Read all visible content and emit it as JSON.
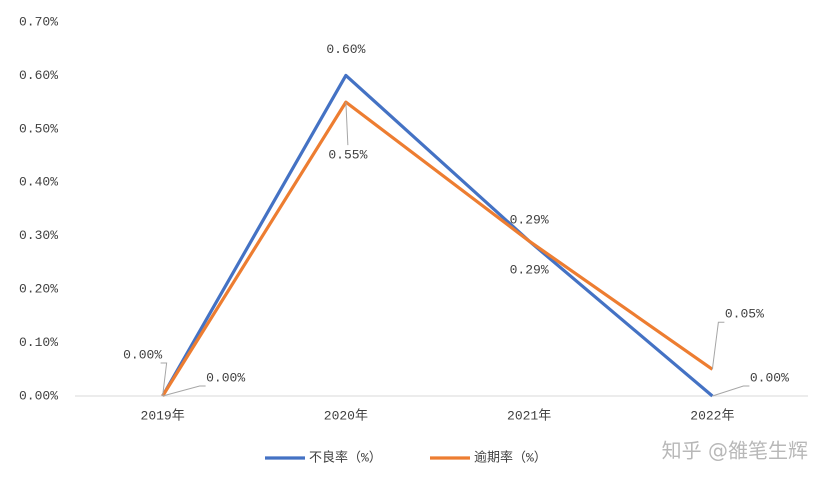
{
  "chart_data": {
    "type": "line",
    "categories": [
      "2019年",
      "2020年",
      "2021年",
      "2022年"
    ],
    "series": [
      {
        "name": "不良率（%）",
        "color": "#4472c4",
        "values": [
          0,
          0.6,
          0.29,
          0
        ],
        "value_labels": [
          "0.00%",
          "0.60%",
          "0.29%",
          "0.00%"
        ]
      },
      {
        "name": "逾期率（%）",
        "color": "#ed7d31",
        "values": [
          0,
          0.55,
          0.29,
          0.05
        ],
        "value_labels": [
          "0.00%",
          "0.55%",
          "0.29%",
          "0.05%"
        ]
      }
    ],
    "ylim": [
      0,
      0.7
    ],
    "yticks": [
      {
        "value": 0,
        "label": "0.00%"
      },
      {
        "value": 0.1,
        "label": "0.10%"
      },
      {
        "value": 0.2,
        "label": "0.20%"
      },
      {
        "value": 0.3,
        "label": "0.30%"
      },
      {
        "value": 0.4,
        "label": "0.40%"
      },
      {
        "value": 0.5,
        "label": "0.50%"
      },
      {
        "value": 0.6,
        "label": "0.60%"
      },
      {
        "value": 0.7,
        "label": "0.70%"
      }
    ],
    "grid": false,
    "legend": "bottom",
    "watermark": "知乎 @雒笔生辉"
  }
}
